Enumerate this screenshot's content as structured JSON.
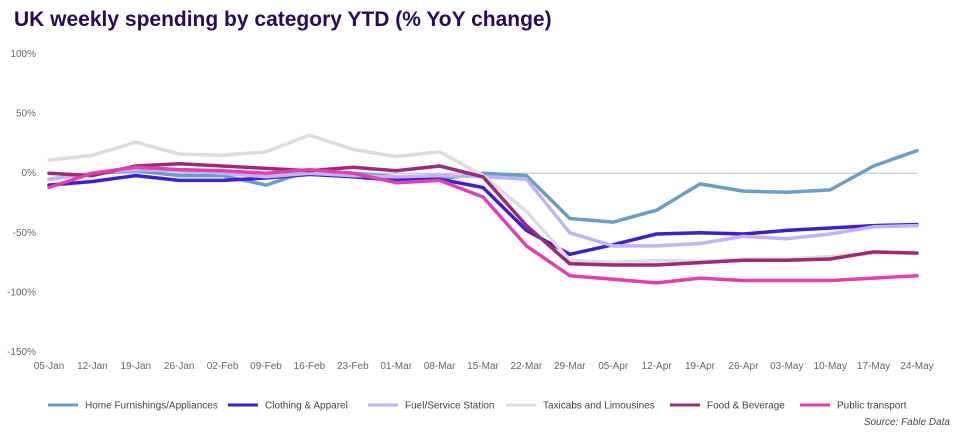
{
  "chart_data": {
    "type": "line",
    "title": "UK weekly spending by category YTD (% YoY change)",
    "xlabel": "",
    "ylabel": "",
    "ylim": [
      -150,
      100
    ],
    "yticks": [
      100,
      50,
      0,
      -50,
      -100,
      -150
    ],
    "ytick_labels": [
      "100%",
      "50%",
      "0%",
      "-50%",
      "-100%",
      "-150%"
    ],
    "grid": false,
    "legend_position": "bottom",
    "x": [
      "05-Jan",
      "12-Jan",
      "19-Jan",
      "26-Jan",
      "02-Feb",
      "09-Feb",
      "16-Feb",
      "23-Feb",
      "01-Mar",
      "08-Mar",
      "15-Mar",
      "22-Mar",
      "29-Mar",
      "05-Apr",
      "12-Apr",
      "19-Apr",
      "26-Apr",
      "03-May",
      "10-May",
      "17-May",
      "24-May"
    ],
    "series": [
      {
        "name": "Home Furnishings/Appliances",
        "color": "#6b9ec4",
        "values": [
          -5,
          0,
          2,
          -2,
          -2,
          -10,
          2,
          0,
          -3,
          -5,
          0,
          -2,
          -38,
          -41,
          -31,
          -9,
          -15,
          -16,
          -14,
          6,
          19
        ]
      },
      {
        "name": "Clothing & Apparel",
        "color": "#3e1fc9",
        "values": [
          -10,
          -7,
          -2,
          -6,
          -6,
          -4,
          -1,
          -3,
          -6,
          -5,
          -12,
          -48,
          -68,
          -60,
          -51,
          -50,
          -51,
          -48,
          -46,
          -44,
          -43
        ]
      },
      {
        "name": "Fuel/Service Station",
        "color": "#c2b3f5",
        "values": [
          -5,
          0,
          3,
          2,
          0,
          -3,
          0,
          -2,
          -3,
          -2,
          -3,
          -5,
          -50,
          -61,
          -61,
          -59,
          -53,
          -55,
          -51,
          -45,
          -44
        ]
      },
      {
        "name": "Taxicabs and Limousines",
        "color": "#dddddd",
        "values": [
          11,
          15,
          26,
          16,
          15,
          18,
          32,
          20,
          14,
          18,
          -2,
          -32,
          -73,
          -75,
          -73,
          -74,
          -72,
          -72,
          -70,
          -67,
          -66
        ]
      },
      {
        "name": "Food & Beverage",
        "color": "#9b2a78",
        "values": [
          0,
          -2,
          6,
          8,
          6,
          4,
          2,
          5,
          2,
          6,
          -3,
          -44,
          -76,
          -77,
          -77,
          -75,
          -73,
          -73,
          -72,
          -66,
          -67
        ]
      },
      {
        "name": "Public transport",
        "color": "#e040b0",
        "values": [
          -12,
          0,
          5,
          3,
          2,
          0,
          3,
          0,
          -8,
          -6,
          -20,
          -61,
          -86,
          -89,
          -92,
          -88,
          -90,
          -90,
          -90,
          -88,
          -86
        ]
      }
    ],
    "source": "Source: Fable Data"
  }
}
